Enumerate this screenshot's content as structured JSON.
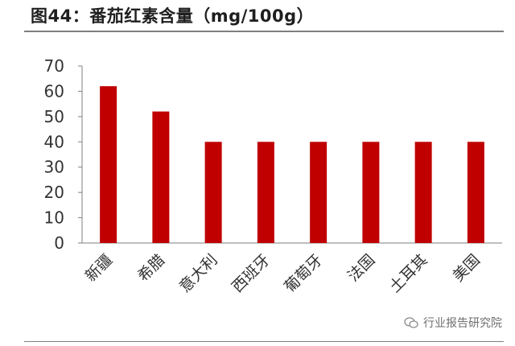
{
  "header": {
    "title": "图44：番茄红素含量（mg/100g）"
  },
  "watermark": {
    "text": "行业报告研究院",
    "icon": "wechat-icon"
  },
  "colors": {
    "bar": "#c00000",
    "axis": "#7f7f7f",
    "tick_text": "#333333"
  },
  "chart_data": {
    "type": "bar",
    "title": "",
    "xlabel": "",
    "ylabel": "",
    "categories": [
      "新疆",
      "希腊",
      "意大利",
      "西班牙",
      "葡萄牙",
      "法国",
      "土耳其",
      "美国"
    ],
    "values": [
      62,
      52,
      40,
      40,
      40,
      40,
      40,
      40
    ],
    "ylim": [
      0,
      70
    ],
    "yticks": [
      0,
      10,
      20,
      30,
      40,
      50,
      60,
      70
    ],
    "grid": false,
    "legend": "none"
  }
}
